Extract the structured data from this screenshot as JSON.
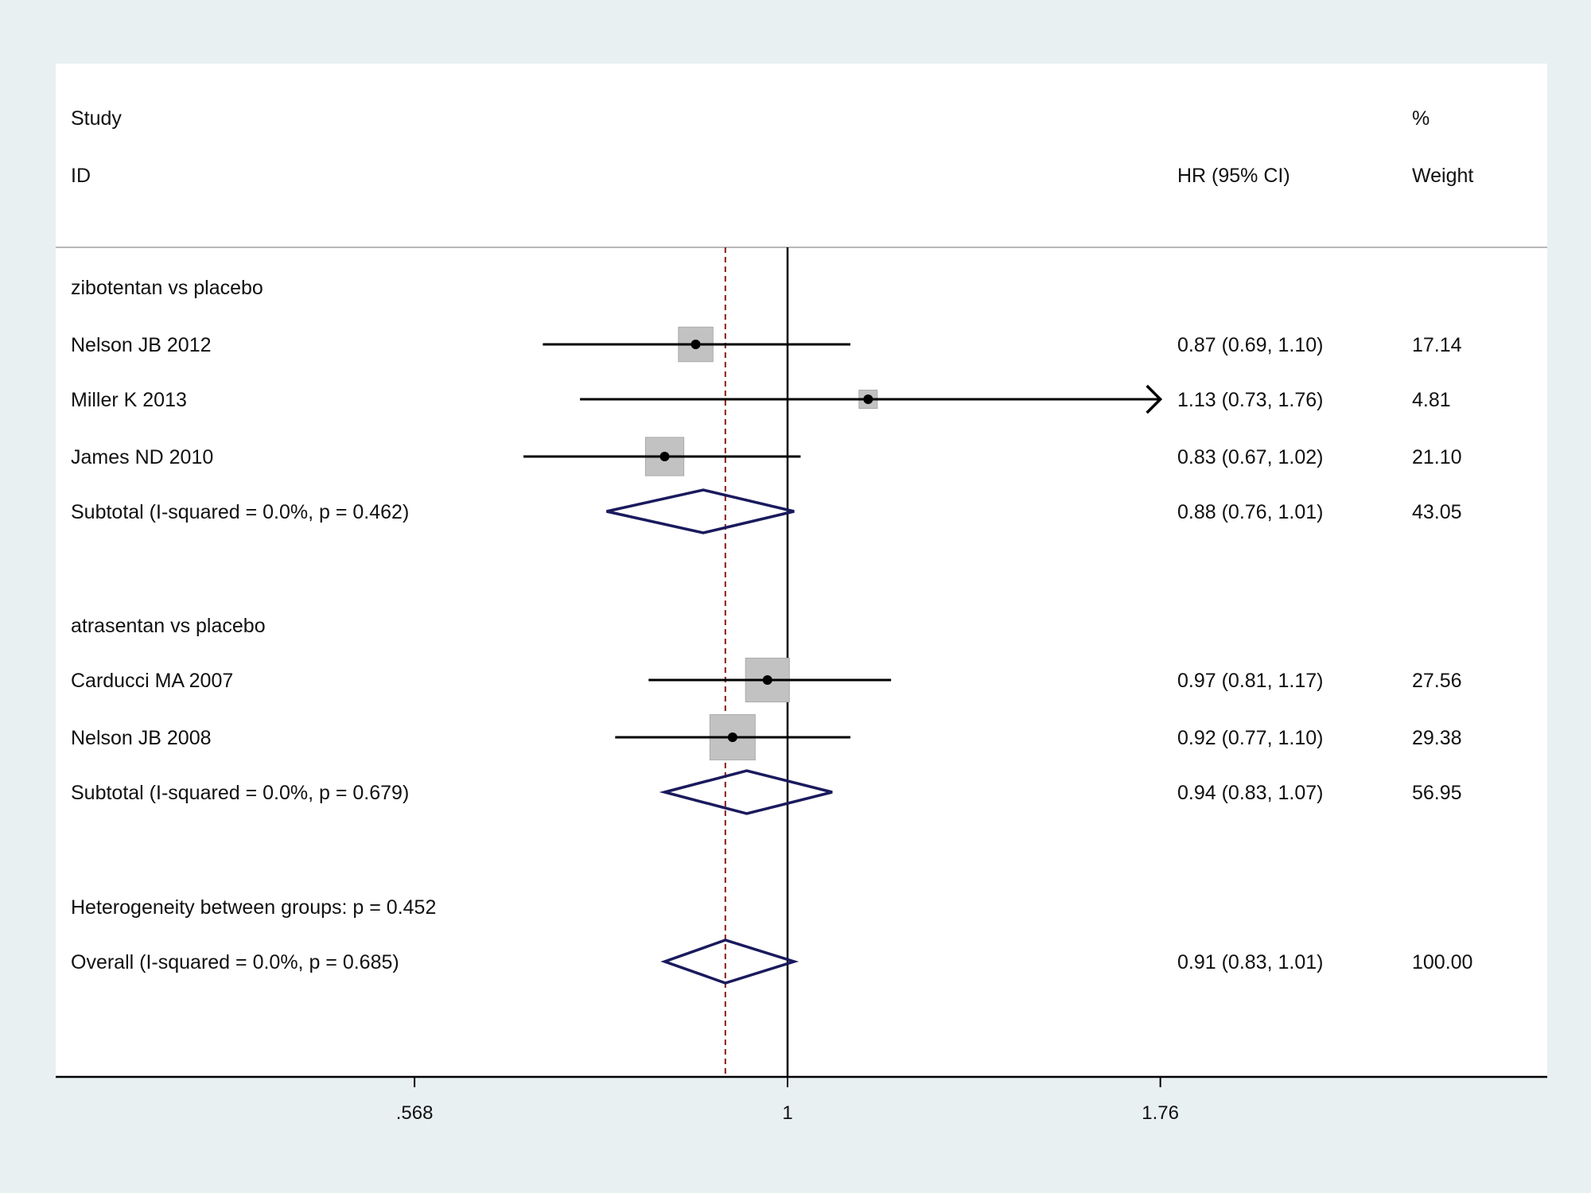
{
  "chart_data": {
    "type": "forest",
    "scale": "log",
    "xticks": [
      {
        "value": 0.568,
        "label": ".568"
      },
      {
        "value": 1,
        "label": "1"
      },
      {
        "value": 1.76,
        "label": "1.76"
      }
    ],
    "null_line_value": 1,
    "overall_line_value": 0.91,
    "headers": {
      "study_line1": "Study",
      "study_line2": "ID",
      "effect": "HR (95% CI)",
      "weight_line1": "%",
      "weight_line2": "Weight"
    },
    "rows": [
      {
        "kind": "group",
        "label": "zibotentan vs placebo"
      },
      {
        "kind": "study",
        "label": "Nelson JB 2012",
        "hr": 0.87,
        "lo": 0.69,
        "hi": 1.1,
        "weight": 17.14,
        "ci_text": "0.87 (0.69, 1.10)",
        "weight_text": "17.14"
      },
      {
        "kind": "study",
        "label": "Miller K 2013",
        "hr": 1.13,
        "lo": 0.73,
        "hi": 1.76,
        "weight": 4.81,
        "ci_text": "1.13 (0.73, 1.76)",
        "weight_text": "4.81",
        "arrow_right": true
      },
      {
        "kind": "study",
        "label": "James ND 2010",
        "hr": 0.83,
        "lo": 0.67,
        "hi": 1.02,
        "weight": 21.1,
        "ci_text": "0.83 (0.67, 1.02)",
        "weight_text": "21.10"
      },
      {
        "kind": "subtotal",
        "label": "Subtotal  (I-squared = 0.0%, p = 0.462)",
        "hr": 0.88,
        "lo": 0.76,
        "hi": 1.01,
        "ci_text": "0.88 (0.76, 1.01)",
        "weight_text": "43.05"
      },
      {
        "kind": "spacer"
      },
      {
        "kind": "group",
        "label": "atrasentan vs placebo"
      },
      {
        "kind": "study",
        "label": "Carducci MA 2007",
        "hr": 0.97,
        "lo": 0.81,
        "hi": 1.17,
        "weight": 27.56,
        "ci_text": "0.97 (0.81, 1.17)",
        "weight_text": "27.56"
      },
      {
        "kind": "study",
        "label": "Nelson JB 2008",
        "hr": 0.92,
        "lo": 0.77,
        "hi": 1.1,
        "weight": 29.38,
        "ci_text": "0.92 (0.77, 1.10)",
        "weight_text": "29.38"
      },
      {
        "kind": "subtotal",
        "label": "Subtotal  (I-squared = 0.0%, p = 0.679)",
        "hr": 0.94,
        "lo": 0.83,
        "hi": 1.07,
        "ci_text": "0.94 (0.83, 1.07)",
        "weight_text": "56.95"
      },
      {
        "kind": "spacer"
      },
      {
        "kind": "note",
        "label": "Heterogeneity between groups: p = 0.452"
      },
      {
        "kind": "overall",
        "label": "Overall  (I-squared = 0.0%, p = 0.685)",
        "hr": 0.91,
        "lo": 0.83,
        "hi": 1.01,
        "ci_text": "0.91 (0.83, 1.01)",
        "weight_text": "100.00"
      }
    ]
  }
}
